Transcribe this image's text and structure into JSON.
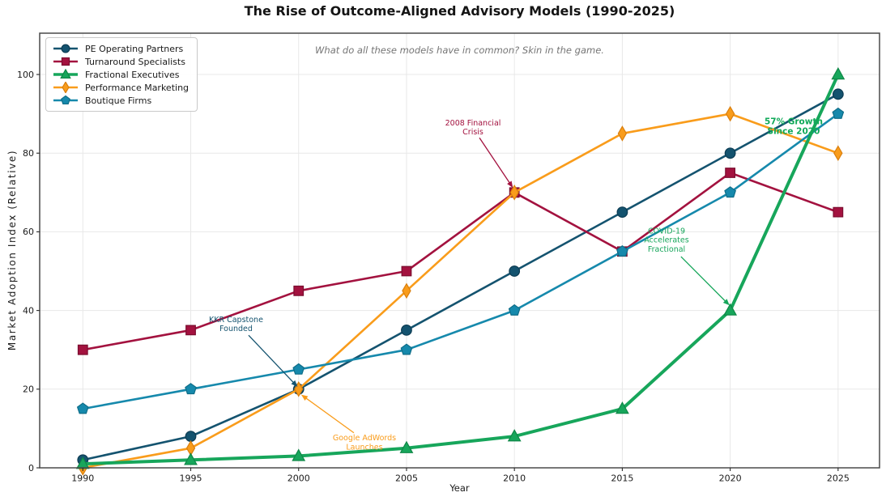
{
  "title": "The Rise of Outcome-Aligned Advisory Models (1990-2025)",
  "subtitle": "What do all these models have in common? Skin in the game.",
  "axes": {
    "xlabel": "Year",
    "ylabel": "Market Adoption Index (Relative)"
  },
  "palette": {
    "grid": "#e8e8e8",
    "frame": "#4a4a4a",
    "tick_text": "#1a1a1a",
    "note_text": "#757575"
  },
  "chart_data": {
    "type": "line",
    "x": [
      1990,
      1995,
      2000,
      2005,
      2010,
      2015,
      2020,
      2025
    ],
    "xticks": [
      1990,
      1995,
      2000,
      2005,
      2010,
      2015,
      2020,
      2025
    ],
    "yticks": [
      0,
      20,
      40,
      60,
      80,
      100
    ],
    "xlim": [
      1988,
      2026.92
    ],
    "ylim": [
      0,
      110.5
    ],
    "grid": true,
    "legend_position": "upper-left",
    "title": "The Rise of Outcome-Aligned Advisory Models (1990-2025)",
    "xlabel": "Year",
    "ylabel": "Market Adoption Index (Relative)",
    "series": [
      {
        "name": "PE Operating Partners",
        "color": "#14536f",
        "edge": "#0c3b52",
        "marker": "circle",
        "linewidth": 2.6,
        "values": [
          2,
          8,
          20,
          35,
          50,
          65,
          80,
          95
        ]
      },
      {
        "name": "Turnaround Specialists",
        "color": "#a3123f",
        "edge": "#7a0d2f",
        "marker": "square",
        "linewidth": 2.6,
        "values": [
          30,
          35,
          45,
          50,
          70,
          55,
          75,
          65
        ]
      },
      {
        "name": "Fractional Executives",
        "color": "#17a65b",
        "edge": "#0f8747",
        "marker": "triangle",
        "linewidth": 4.0,
        "values": [
          1,
          2,
          3,
          5,
          8,
          15,
          40,
          100
        ]
      },
      {
        "name": "Performance Marketing",
        "color": "#f99c1b",
        "edge": "#d97f0e",
        "marker": "diamond",
        "linewidth": 2.6,
        "values": [
          0,
          5,
          20,
          45,
          70,
          85,
          90,
          80
        ]
      },
      {
        "name": "Boutique Firms",
        "color": "#1689ac",
        "edge": "#0f6d88",
        "marker": "pentagon",
        "linewidth": 2.6,
        "values": [
          15,
          20,
          25,
          30,
          40,
          55,
          70,
          90
        ]
      }
    ],
    "draw_order": [
      0,
      1,
      3,
      4,
      2
    ],
    "annotations": [
      {
        "id": "2008-financial-crisis",
        "lines": [
          "2008 Financial",
          "Crisis"
        ],
        "color": "#a3123f",
        "text_at": [
          2008.08,
          86.6
        ],
        "arrow_from": [
          2008.38,
          83.9
        ],
        "arrow_to": [
          2009.93,
          71.2
        ],
        "font": 9.5,
        "bold": false
      },
      {
        "id": "kkr-capstone-founded",
        "lines": [
          "KKR Capstone",
          "Founded"
        ],
        "color": "#14536f",
        "text_at": [
          1997.1,
          36.6
        ],
        "arrow_from": [
          1997.68,
          33.7
        ],
        "arrow_to": [
          1999.95,
          20.6
        ],
        "font": 9.5,
        "bold": false
      },
      {
        "id": "google-adwords-launches",
        "lines": [
          "Google AdWords",
          "Launches"
        ],
        "color": "#f99c1b",
        "text_at": [
          2003.05,
          6.5
        ],
        "arrow_from": [
          2002.56,
          8.9
        ],
        "arrow_to": [
          2000.12,
          18.6
        ],
        "font": 9.5,
        "bold": false
      },
      {
        "id": "covid-19-accelerates-fractional",
        "lines": [
          "COVID-19",
          "Accelerates",
          "Fractional"
        ],
        "color": "#17a65b",
        "text_at": [
          2017.05,
          58.0
        ],
        "arrow_from": [
          2017.72,
          53.7
        ],
        "arrow_to": [
          2019.97,
          41.3
        ],
        "font": 9.5,
        "bold": false
      },
      {
        "id": "57-percent-growth-since-2020",
        "lines": [
          "57% Growth",
          "Since 2020"
        ],
        "color": "#0fa958",
        "text_at": [
          2022.94,
          86.9
        ],
        "font": 10.5,
        "bold": true
      }
    ]
  }
}
